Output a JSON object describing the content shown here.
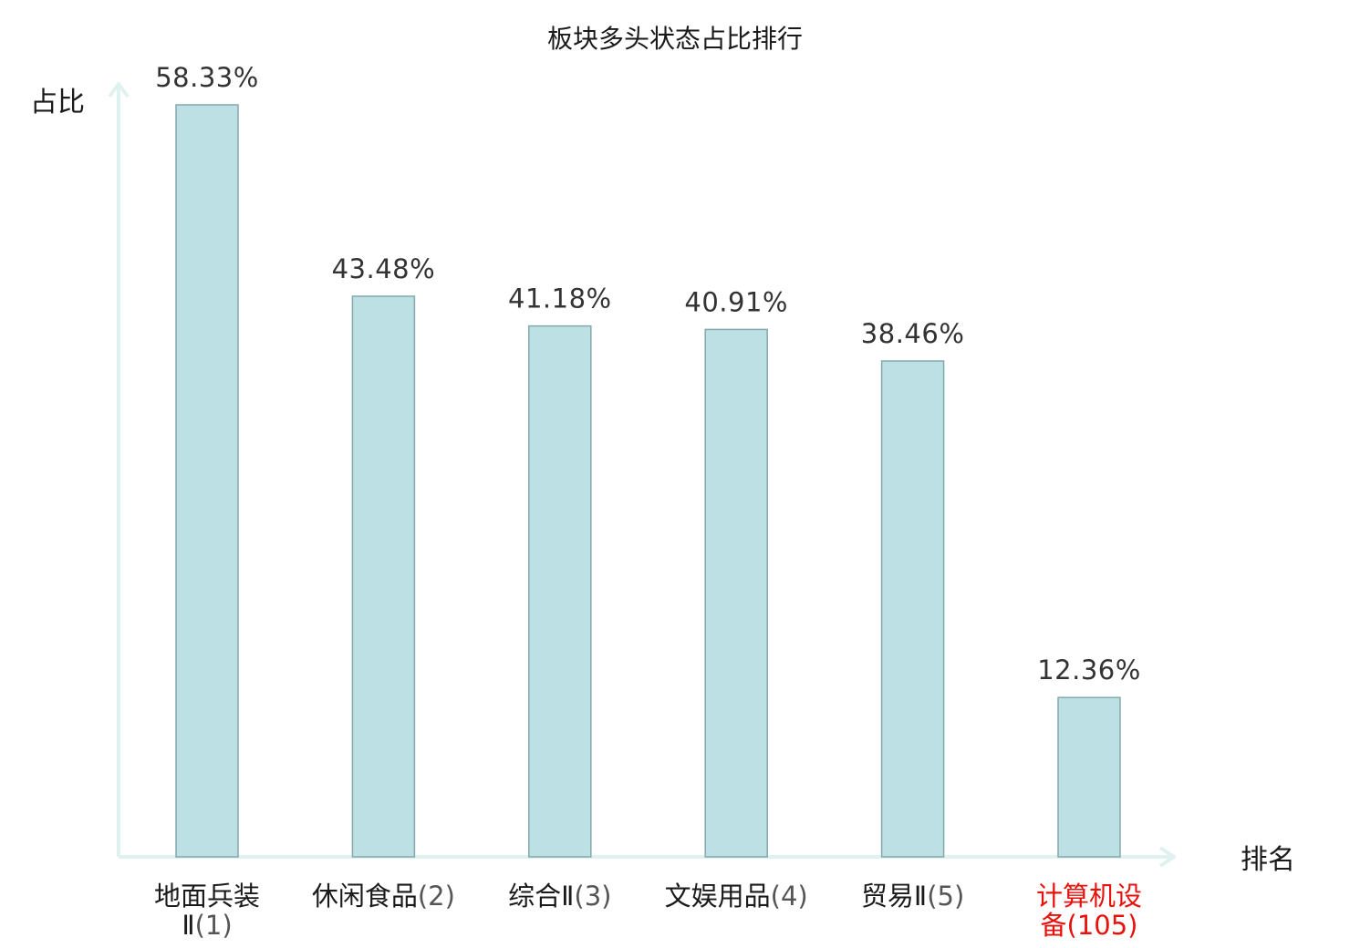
{
  "chart_data": {
    "type": "bar",
    "title": "板块多头状态占比排行",
    "ylabel": "占比",
    "xlabel": "排名",
    "ylim": [
      0,
      60
    ],
    "grid": false,
    "legend": "none",
    "categories": [
      {
        "name": "地面兵装Ⅱ",
        "rank": "(1)",
        "highlight": false
      },
      {
        "name": "休闲食品",
        "rank": "(2)",
        "highlight": false
      },
      {
        "name": "综合Ⅱ",
        "rank": "(3)",
        "highlight": false
      },
      {
        "name": "文娱用品",
        "rank": "(4)",
        "highlight": false
      },
      {
        "name": "贸易Ⅱ",
        "rank": "(5)",
        "highlight": false
      },
      {
        "name": "计算机设备",
        "rank": "(105)",
        "highlight": true
      }
    ],
    "values": [
      58.33,
      43.48,
      41.18,
      40.91,
      38.46,
      12.36
    ],
    "value_labels": [
      "58.33%",
      "43.48%",
      "41.18%",
      "40.91%",
      "38.46%",
      "12.36%"
    ]
  },
  "colors": {
    "bar_fill": "#bce0e3",
    "bar_stroke": "#85a8ab",
    "axis": "#dff2ef",
    "highlight_text": "#e8120c",
    "text": "#1a1a1a",
    "value_text": "#333333"
  }
}
